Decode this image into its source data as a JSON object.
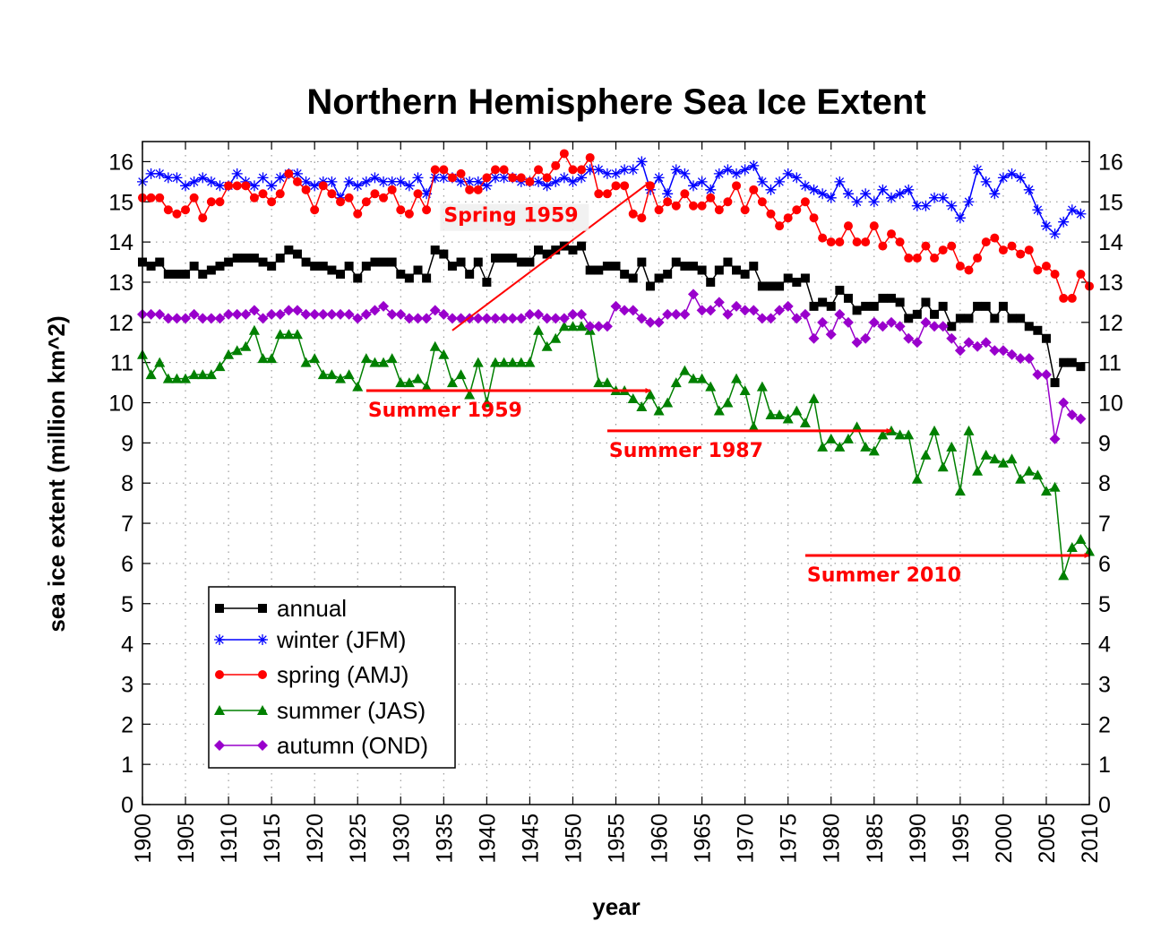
{
  "chart_data": {
    "type": "line",
    "title": "Northern Hemisphere Sea Ice Extent",
    "xlabel": "year",
    "ylabel": "sea ice extent (million km^2)",
    "xlim": [
      1900,
      2010
    ],
    "ylim": [
      0,
      16.5
    ],
    "xticks": [
      1900,
      1905,
      1910,
      1915,
      1920,
      1925,
      1930,
      1935,
      1940,
      1945,
      1950,
      1955,
      1960,
      1965,
      1970,
      1975,
      1980,
      1985,
      1990,
      1995,
      2000,
      2005,
      2010
    ],
    "yticks": [
      0,
      1,
      2,
      3,
      4,
      5,
      6,
      7,
      8,
      9,
      10,
      11,
      12,
      13,
      14,
      15,
      16
    ],
    "grid": true,
    "legend_position": "bottom-left",
    "series": [
      {
        "name": "annual",
        "color": "#000000",
        "marker": "square",
        "x_start": 1900,
        "values": [
          13.5,
          13.4,
          13.5,
          13.2,
          13.2,
          13.2,
          13.4,
          13.2,
          13.3,
          13.4,
          13.5,
          13.6,
          13.6,
          13.6,
          13.5,
          13.4,
          13.6,
          13.8,
          13.7,
          13.5,
          13.4,
          13.4,
          13.3,
          13.2,
          13.4,
          13.1,
          13.4,
          13.5,
          13.5,
          13.5,
          13.2,
          13.1,
          13.3,
          13.1,
          13.8,
          13.7,
          13.4,
          13.5,
          13.2,
          13.5,
          13.0,
          13.6,
          13.6,
          13.6,
          13.5,
          13.5,
          13.8,
          13.7,
          13.8,
          13.9,
          13.8,
          13.9,
          13.3,
          13.3,
          13.4,
          13.4,
          13.2,
          13.1,
          13.5,
          12.9,
          13.1,
          13.2,
          13.5,
          13.4,
          13.4,
          13.3,
          13.0,
          13.3,
          13.5,
          13.3,
          13.2,
          13.4,
          12.9,
          12.9,
          12.9,
          13.1,
          13.0,
          13.1,
          12.4,
          12.5,
          12.4,
          12.8,
          12.6,
          12.3,
          12.4,
          12.4,
          12.6,
          12.6,
          12.5,
          12.1,
          12.2,
          12.5,
          12.2,
          12.4,
          11.9,
          12.1,
          12.1,
          12.4,
          12.4,
          12.1,
          12.4,
          12.1,
          12.1,
          11.9,
          11.8,
          11.6,
          10.5,
          11.0,
          11.0,
          10.9
        ]
      },
      {
        "name": "winter (JFM)",
        "color": "#0000ff",
        "marker": "asterisk",
        "x_start": 1900,
        "values": [
          15.5,
          15.7,
          15.7,
          15.6,
          15.6,
          15.4,
          15.5,
          15.6,
          15.5,
          15.4,
          15.4,
          15.7,
          15.5,
          15.4,
          15.6,
          15.4,
          15.6,
          15.7,
          15.7,
          15.5,
          15.4,
          15.5,
          15.5,
          15.1,
          15.5,
          15.4,
          15.5,
          15.6,
          15.5,
          15.5,
          15.5,
          15.4,
          15.6,
          15.2,
          15.6,
          15.6,
          15.6,
          15.5,
          15.5,
          15.5,
          15.4,
          15.6,
          15.6,
          15.6,
          15.5,
          15.5,
          15.5,
          15.4,
          15.5,
          15.6,
          15.5,
          15.6,
          15.8,
          15.8,
          15.7,
          15.7,
          15.8,
          15.8,
          16.0,
          15.3,
          15.6,
          15.2,
          15.8,
          15.7,
          15.4,
          15.5,
          15.3,
          15.7,
          15.8,
          15.7,
          15.8,
          15.9,
          15.5,
          15.3,
          15.5,
          15.7,
          15.6,
          15.4,
          15.3,
          15.2,
          15.1,
          15.5,
          15.2,
          15.0,
          15.2,
          15.0,
          15.3,
          15.1,
          15.2,
          15.3,
          14.9,
          14.9,
          15.1,
          15.1,
          14.9,
          14.6,
          15.0,
          15.8,
          15.5,
          15.2,
          15.6,
          15.7,
          15.6,
          15.3,
          14.8,
          14.4,
          14.2,
          14.5,
          14.8,
          14.7
        ]
      },
      {
        "name": "spring (AMJ)",
        "color": "#ff0000",
        "marker": "circle",
        "x_start": 1900,
        "values": [
          15.1,
          15.1,
          15.1,
          14.8,
          14.7,
          14.8,
          15.1,
          14.6,
          15.0,
          15.0,
          15.4,
          15.4,
          15.4,
          15.1,
          15.2,
          15.0,
          15.2,
          15.7,
          15.5,
          15.3,
          14.8,
          15.4,
          15.2,
          15.0,
          15.1,
          14.7,
          15.0,
          15.2,
          15.1,
          15.3,
          14.8,
          14.7,
          15.2,
          14.8,
          15.8,
          15.8,
          15.6,
          15.7,
          15.3,
          15.3,
          15.6,
          15.8,
          15.8,
          15.6,
          15.6,
          15.5,
          15.8,
          15.6,
          15.9,
          16.2,
          15.8,
          15.8,
          16.1,
          15.2,
          15.2,
          15.4,
          15.4,
          14.7,
          14.6,
          15.4,
          14.8,
          15.0,
          14.9,
          15.2,
          14.9,
          14.9,
          15.1,
          14.8,
          15.0,
          15.4,
          14.8,
          15.3,
          15.0,
          14.7,
          14.4,
          14.6,
          14.8,
          15.0,
          14.6,
          14.1,
          14.0,
          14.0,
          14.4,
          14.0,
          14.0,
          14.4,
          13.9,
          14.2,
          14.0,
          13.6,
          13.6,
          13.9,
          13.6,
          13.8,
          13.9,
          13.4,
          13.3,
          13.6,
          14.0,
          14.1,
          13.8,
          13.9,
          13.7,
          13.8,
          13.3,
          13.4,
          13.2,
          12.6,
          12.6,
          13.2,
          12.9
        ]
      },
      {
        "name": "summer (JAS)",
        "color": "#008000",
        "marker": "triangle",
        "x_start": 1900,
        "values": [
          11.2,
          10.7,
          11.0,
          10.6,
          10.6,
          10.6,
          10.7,
          10.7,
          10.7,
          10.9,
          11.2,
          11.3,
          11.4,
          11.8,
          11.1,
          11.1,
          11.7,
          11.7,
          11.7,
          11.0,
          11.1,
          10.7,
          10.7,
          10.6,
          10.7,
          10.4,
          11.1,
          11.0,
          11.0,
          11.1,
          10.5,
          10.5,
          10.6,
          10.4,
          11.4,
          11.2,
          10.5,
          10.7,
          10.2,
          11.0,
          10.0,
          11.0,
          11.0,
          11.0,
          11.0,
          11.0,
          11.8,
          11.4,
          11.6,
          11.9,
          11.9,
          11.9,
          11.8,
          10.5,
          10.5,
          10.3,
          10.3,
          10.1,
          9.9,
          10.2,
          9.8,
          10.0,
          10.5,
          10.8,
          10.6,
          10.6,
          10.4,
          9.8,
          10.0,
          10.6,
          10.3,
          9.4,
          10.4,
          9.7,
          9.7,
          9.6,
          9.8,
          9.5,
          10.1,
          8.9,
          9.1,
          8.9,
          9.1,
          9.4,
          8.9,
          8.8,
          9.2,
          9.3,
          9.2,
          9.2,
          8.1,
          8.7,
          9.3,
          8.4,
          8.9,
          7.8,
          9.3,
          8.3,
          8.7,
          8.6,
          8.5,
          8.6,
          8.1,
          8.3,
          8.2,
          7.8,
          7.9,
          5.7,
          6.4,
          6.6,
          6.3
        ]
      },
      {
        "name": "autumn (OND)",
        "color": "#9900cc",
        "marker": "diamond",
        "x_start": 1900,
        "values": [
          12.2,
          12.2,
          12.2,
          12.1,
          12.1,
          12.1,
          12.2,
          12.1,
          12.1,
          12.1,
          12.2,
          12.2,
          12.2,
          12.3,
          12.1,
          12.2,
          12.2,
          12.3,
          12.3,
          12.2,
          12.2,
          12.2,
          12.2,
          12.2,
          12.2,
          12.1,
          12.2,
          12.3,
          12.4,
          12.2,
          12.2,
          12.1,
          12.1,
          12.1,
          12.3,
          12.2,
          12.1,
          12.1,
          12.1,
          12.1,
          12.1,
          12.1,
          12.1,
          12.1,
          12.1,
          12.2,
          12.2,
          12.1,
          12.1,
          12.1,
          12.2,
          12.2,
          11.9,
          11.9,
          11.9,
          12.4,
          12.3,
          12.3,
          12.1,
          12.0,
          12.0,
          12.2,
          12.2,
          12.2,
          12.7,
          12.3,
          12.3,
          12.5,
          12.2,
          12.4,
          12.3,
          12.3,
          12.1,
          12.1,
          12.3,
          12.4,
          12.1,
          12.2,
          11.6,
          12.0,
          11.7,
          12.2,
          12.0,
          11.5,
          11.6,
          12.0,
          11.9,
          12.0,
          11.9,
          11.6,
          11.5,
          12.0,
          11.9,
          11.9,
          11.6,
          11.3,
          11.5,
          11.4,
          11.5,
          11.3,
          11.3,
          11.2,
          11.1,
          11.1,
          10.7,
          10.7,
          9.1,
          10.0,
          9.7,
          9.6
        ]
      }
    ],
    "annotations": [
      {
        "label": "Spring 1959",
        "from": [
          1936,
          11.8
        ],
        "to": [
          1959,
          15.5
        ]
      },
      {
        "label": "Summer 1959",
        "from": [
          1926,
          10.3
        ],
        "to": [
          1959,
          10.3
        ]
      },
      {
        "label": "Summer 1987",
        "from": [
          1954,
          9.3
        ],
        "to": [
          1987,
          9.3
        ]
      },
      {
        "label": "Summer 2010",
        "from": [
          1977,
          6.2
        ],
        "to": [
          2010,
          6.2
        ]
      }
    ]
  }
}
